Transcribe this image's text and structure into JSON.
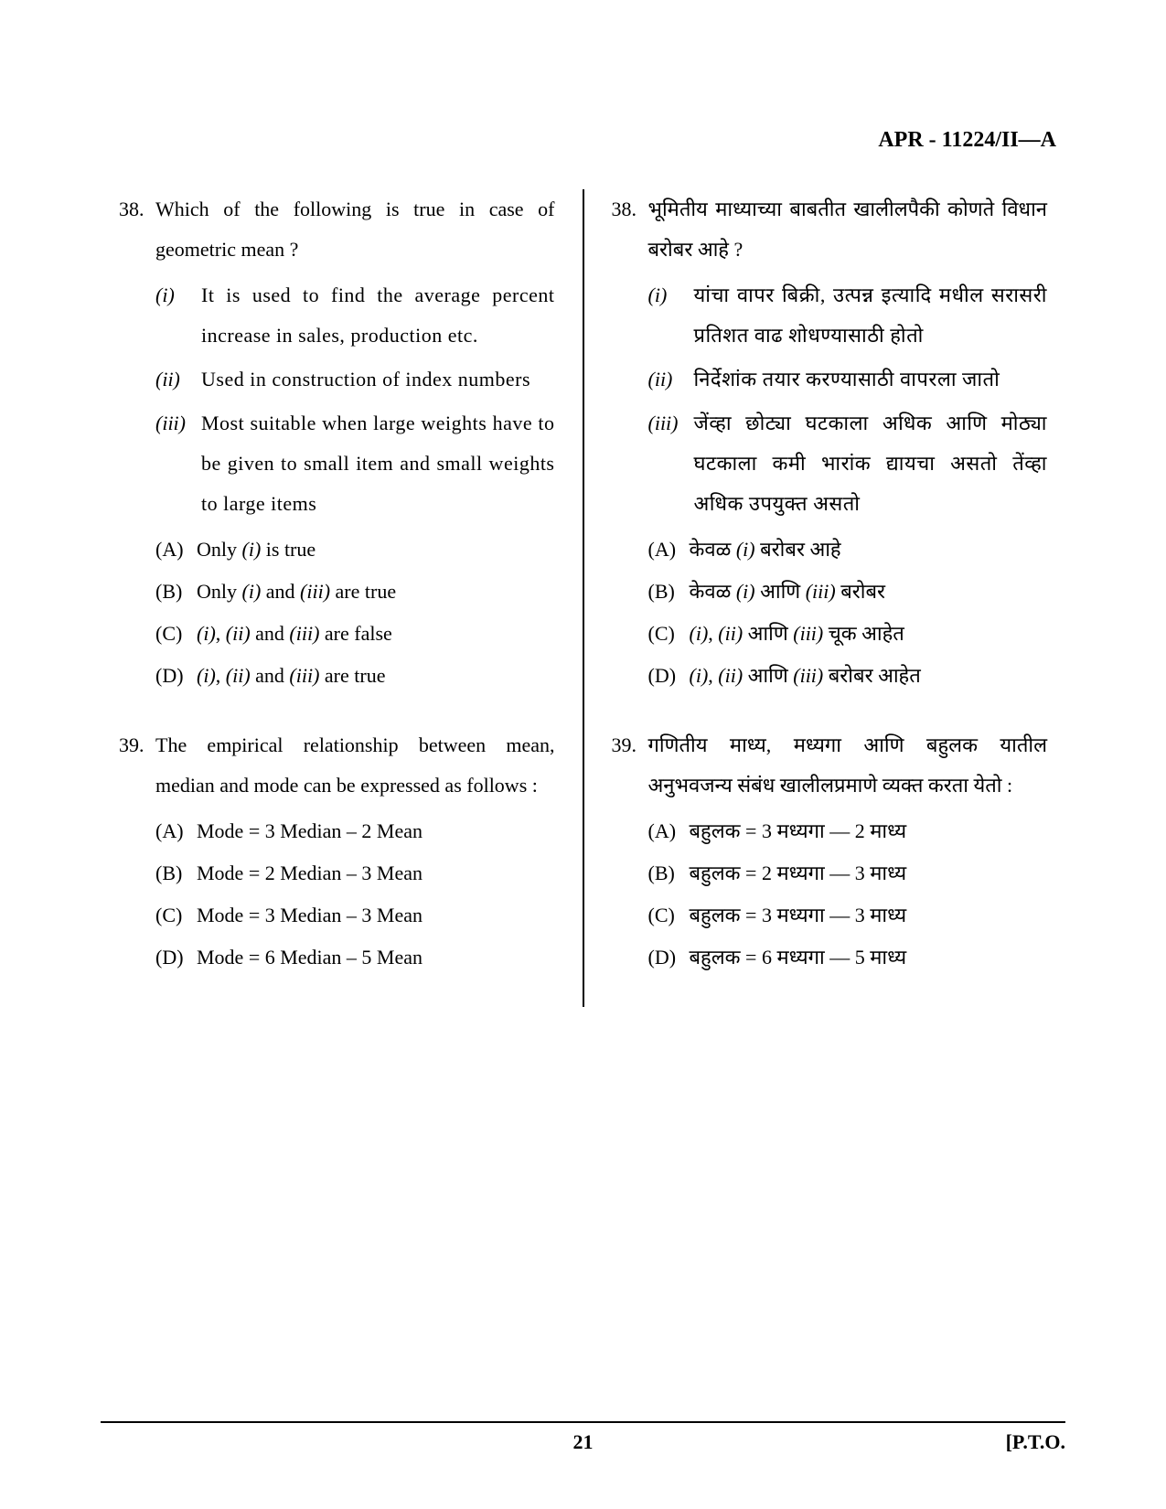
{
  "header": "APR - 11224/II—A",
  "page_number": "21",
  "pto": "[P.T.O.",
  "left": {
    "q38": {
      "num": "38.",
      "stem": "Which of the following is true in case of geometric mean ?",
      "romans": [
        {
          "label": "(i)",
          "text": "It is used to find the average percent increase in sales, production etc."
        },
        {
          "label": "(ii)",
          "text": "Used in construction of index numbers"
        },
        {
          "label": "(iii)",
          "text": "Most suitable when large weights have to be given to small item and small weights to large items"
        }
      ],
      "opts": [
        {
          "label": "(A)",
          "text_before": "Only ",
          "ital": "(i)",
          "text_after": " is true"
        },
        {
          "label": "(B)",
          "text_before": "Only ",
          "ital": "(i)",
          "text_mid": " and ",
          "ital2": "(iii)",
          "text_after": " are true"
        },
        {
          "label": "(C)",
          "ital": "(i)",
          "text_mid": ", ",
          "ital2": "(ii)",
          "text_mid2": " and ",
          "ital3": "(iii)",
          "text_after": " are false"
        },
        {
          "label": "(D)",
          "ital": "(i)",
          "text_mid": ", ",
          "ital2": "(ii)",
          "text_mid2": " and ",
          "ital3": "(iii)",
          "text_after": " are true"
        }
      ]
    },
    "q39": {
      "num": "39.",
      "stem": "The empirical relationship between mean, median and mode can be expressed as follows :",
      "opts": [
        {
          "label": "(A)",
          "text": "Mode = 3 Median – 2 Mean"
        },
        {
          "label": "(B)",
          "text": "Mode = 2 Median – 3 Mean"
        },
        {
          "label": "(C)",
          "text": "Mode = 3 Median – 3 Mean"
        },
        {
          "label": "(D)",
          "text": "Mode = 6 Median – 5 Mean"
        }
      ]
    }
  },
  "right": {
    "q38": {
      "num": "38.",
      "stem": "भूमितीय माध्याच्या बाबतीत खालीलपैकी कोणते विधान बरोबर आहे ?",
      "romans": [
        {
          "label": "(i)",
          "text": "यांचा वापर बिक्री, उत्पन्न इत्यादि मधील सरासरी प्रतिशत वाढ शोधण्यासाठी होतो"
        },
        {
          "label": "(ii)",
          "text": "निर्देशांक तयार करण्यासाठी वापरला जातो"
        },
        {
          "label": "(iii)",
          "text": "जेंव्हा छोट्या घटकाला अधिक आणि मोठ्या घटकाला कमी भारांक द्यायचा असतो तेंव्हा अधिक उपयुक्त असतो"
        }
      ],
      "opts": [
        {
          "label": "(A)",
          "text_before": "केवळ ",
          "ital": "(i)",
          "text_after": " बरोबर आहे"
        },
        {
          "label": "(B)",
          "text_before": "केवळ ",
          "ital": "(i)",
          "text_mid": " आणि ",
          "ital2": "(iii)",
          "text_after": " बरोबर"
        },
        {
          "label": "(C)",
          "ital": "(i)",
          "text_mid": ", ",
          "ital2": "(ii)",
          "text_mid2": " आणि ",
          "ital3": "(iii)",
          "text_after": " चूक आहेत"
        },
        {
          "label": "(D)",
          "ital": "(i)",
          "text_mid": ", ",
          "ital2": "(ii)",
          "text_mid2": " आणि ",
          "ital3": "(iii)",
          "text_after": " बरोबर आहेत"
        }
      ]
    },
    "q39": {
      "num": "39.",
      "stem": "गणितीय माध्य, मध्यगा आणि बहुलक यातील अनुभवजन्य संबंध खालीलप्रमाणे व्यक्त करता येतो :",
      "opts": [
        {
          "label": "(A)",
          "text": "बहुलक = 3 मध्यगा — 2 माध्य"
        },
        {
          "label": "(B)",
          "text": "बहुलक = 2 मध्यगा — 3 माध्य"
        },
        {
          "label": "(C)",
          "text": "बहुलक = 3 मध्यगा — 3 माध्य"
        },
        {
          "label": "(D)",
          "text": "बहुलक = 6 मध्यगा — 5 माध्य"
        }
      ]
    }
  }
}
